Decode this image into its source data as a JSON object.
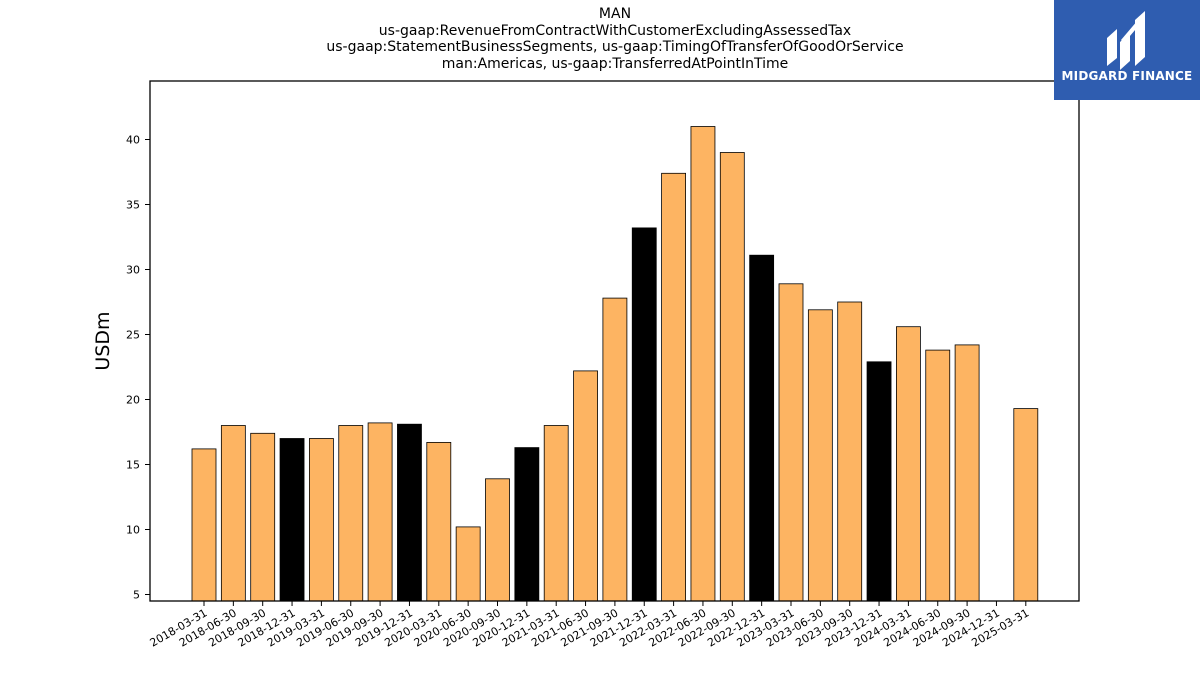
{
  "title_lines": [
    "MAN",
    "us-gaap:RevenueFromContractWithCustomerExcludingAssessedTax",
    "us-gaap:StatementBusinessSegments, us-gaap:TimingOfTransferOfGoodOrService",
    "man:Americas, us-gaap:TransferredAtPointInTime"
  ],
  "logo": {
    "text": "MIDGARD FINANCE",
    "background": "#2f5db0"
  },
  "colors": {
    "quarter_bar": "#fdb462",
    "year_end_bar": "#000000",
    "edge": "#000000"
  },
  "chart_data": {
    "type": "bar",
    "title": "MAN",
    "xlabel": "",
    "ylabel": "USDm",
    "ylim": [
      4.5,
      44.5
    ],
    "yticks": [
      5,
      10,
      15,
      20,
      25,
      30,
      35,
      40
    ],
    "grid": false,
    "categories": [
      "2018-03-31",
      "2018-06-30",
      "2018-09-30",
      "2018-12-31",
      "2019-03-31",
      "2019-06-30",
      "2019-09-30",
      "2019-12-31",
      "2020-03-31",
      "2020-06-30",
      "2020-09-30",
      "2020-12-31",
      "2021-03-31",
      "2021-06-30",
      "2021-09-30",
      "2021-12-31",
      "2022-03-31",
      "2022-06-30",
      "2022-09-30",
      "2022-12-31",
      "2023-03-31",
      "2023-06-30",
      "2023-09-30",
      "2023-12-31",
      "2024-03-31",
      "2024-06-30",
      "2024-09-30",
      "2024-12-31",
      "2025-03-31"
    ],
    "values": [
      16.2,
      18.0,
      17.4,
      17.0,
      17.0,
      18.0,
      18.2,
      18.1,
      16.7,
      10.2,
      13.9,
      16.3,
      18.0,
      22.2,
      27.8,
      33.2,
      37.4,
      41.0,
      39.0,
      31.1,
      28.9,
      26.9,
      27.5,
      22.9,
      25.6,
      23.8,
      24.2,
      null,
      19.3
    ],
    "highlight": [
      false,
      false,
      false,
      true,
      false,
      false,
      false,
      true,
      false,
      false,
      false,
      true,
      false,
      false,
      false,
      true,
      false,
      false,
      false,
      true,
      false,
      false,
      false,
      true,
      false,
      false,
      false,
      false,
      false
    ]
  }
}
